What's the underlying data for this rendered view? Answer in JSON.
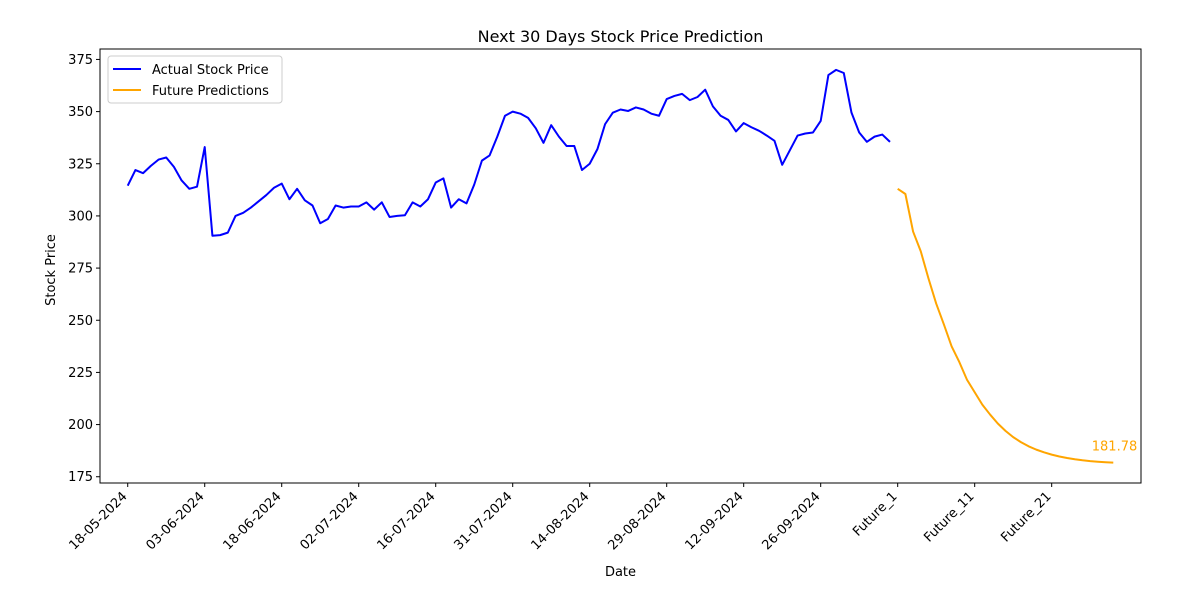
{
  "chart_data": {
    "type": "line",
    "title": "Next 30 Days Stock Price Prediction",
    "xlabel": "Date",
    "ylabel": "Stock Price",
    "ylim": [
      172,
      380
    ],
    "yticks": [
      175,
      200,
      225,
      250,
      275,
      300,
      325,
      350,
      375
    ],
    "grid": false,
    "legend_position": "upper-left",
    "x_tick_labels": [
      "18-05-2024",
      "03-06-2024",
      "18-06-2024",
      "02-07-2024",
      "16-07-2024",
      "31-07-2024",
      "14-08-2024",
      "29-08-2024",
      "12-09-2024",
      "26-09-2024",
      "Future_1",
      "Future_11",
      "Future_21"
    ],
    "x_tick_index": [
      0,
      10,
      20,
      30,
      40,
      50,
      60,
      70,
      80,
      90,
      100,
      110,
      120
    ],
    "series": [
      {
        "name": "Actual Stock Price",
        "color": "#0000ff",
        "values": [
          314.5,
          322,
          320.5,
          324,
          327,
          328,
          323.5,
          317,
          313,
          314,
          333,
          290.5,
          290.8,
          292,
          300,
          301.5,
          304,
          307,
          310,
          313.5,
          315.5,
          308,
          313,
          307.5,
          305,
          296.5,
          298.5,
          305,
          304,
          304.5,
          304.5,
          306.5,
          303,
          306.5,
          299.5,
          300,
          300.3,
          306.5,
          304.5,
          308,
          316,
          318,
          304,
          308,
          306,
          315,
          326.5,
          329,
          338,
          348,
          350,
          349,
          347,
          342,
          335,
          343.5,
          338,
          333.5,
          333.5,
          322,
          325,
          332,
          344,
          349.5,
          351,
          350.3,
          352,
          351,
          349,
          348,
          356,
          357.5,
          358.5,
          355.5,
          357,
          360.5,
          352.5,
          348,
          346,
          340.5,
          344.5,
          342.5,
          340.8,
          338.5,
          336,
          324.5,
          331.5,
          338.5,
          339.5,
          340,
          345.5,
          367.5,
          370,
          368.5,
          349.5,
          340,
          335.5,
          338,
          339,
          335.5
        ]
      },
      {
        "name": "Future Predictions",
        "color": "#ffa500",
        "values": [
          313,
          310.5,
          292.5,
          283,
          270,
          258,
          248,
          237.5,
          230,
          221.5,
          215.5,
          209.5,
          204.8,
          200.5,
          197,
          194,
          191.6,
          189.6,
          188,
          186.7,
          185.6,
          184.7,
          184,
          183.4,
          182.9,
          182.5,
          182.2,
          181.95,
          181.78
        ]
      }
    ],
    "annotations": [
      {
        "text": "181.78",
        "series": 1,
        "index": 28
      }
    ]
  }
}
